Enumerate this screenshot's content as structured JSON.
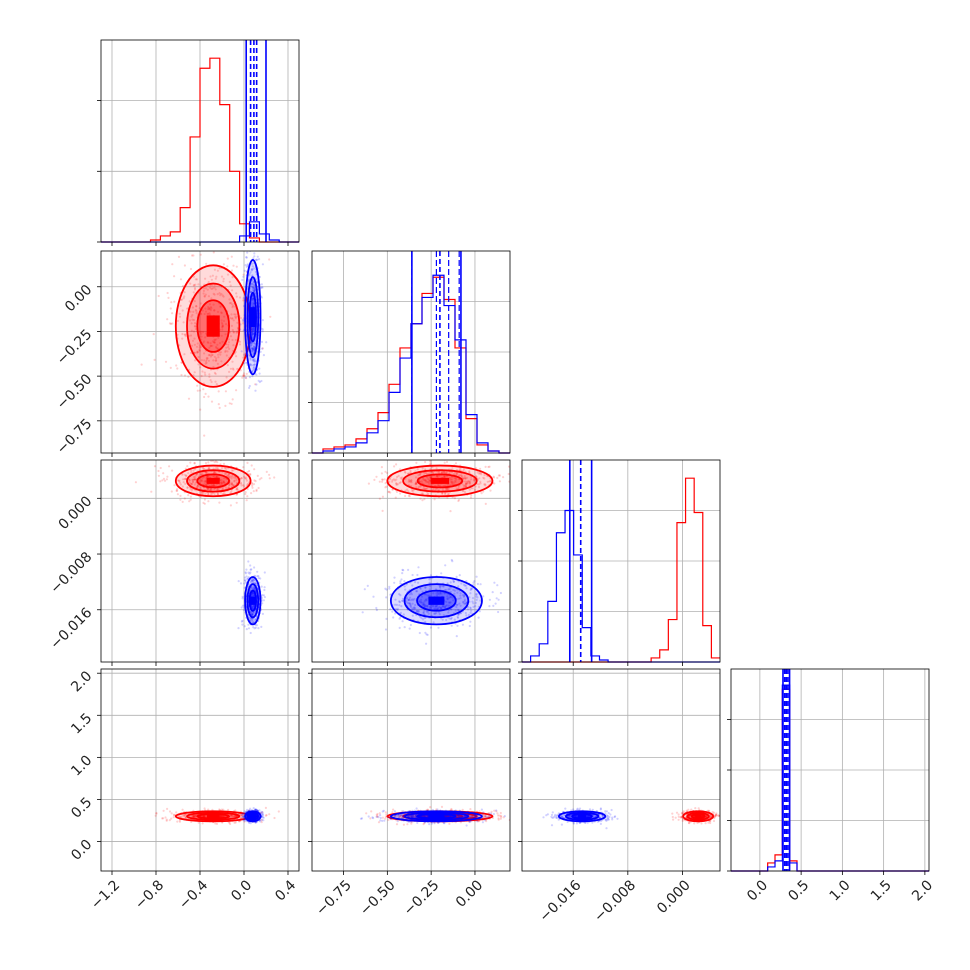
{
  "chart_data": {
    "type": "corner",
    "series": [
      {
        "name": "",
        "color": "#ff0000"
      },
      {
        "name": "",
        "color": "#0000ff"
      }
    ],
    "columns": [
      {
        "range": [
          -1.3,
          0.5
        ],
        "ticks": [
          "−1.2",
          "−0.8",
          "−0.4",
          "0.0",
          "0.4"
        ],
        "tick_values": [
          -1.2,
          -0.8,
          -0.4,
          0.0,
          0.4
        ]
      },
      {
        "range": [
          -0.93,
          0.2
        ],
        "ticks": [
          "−0.75",
          "−0.50",
          "−0.25",
          "0.00"
        ],
        "tick_values": [
          -0.75,
          -0.5,
          -0.25,
          0.0
        ]
      },
      {
        "range": [
          -0.0235,
          0.0055
        ],
        "ticks": [
          "−0.016",
          "−0.008",
          "0.000"
        ],
        "tick_values": [
          -0.016,
          -0.008,
          0.0
        ]
      },
      {
        "range": [
          -0.35,
          2.05
        ],
        "ticks": [
          "0.0",
          "0.5",
          "1.0",
          "1.5",
          "2.0"
        ],
        "tick_values": [
          0.0,
          0.5,
          1.0,
          1.5,
          2.0
        ]
      }
    ],
    "rows": [
      {
        "index": 1,
        "range": [
          -0.93,
          0.2
        ],
        "ticks": [
          "0.00",
          "−0.25",
          "−0.50",
          "−0.75"
        ],
        "tick_values": [
          0.0,
          -0.25,
          -0.5,
          -0.75
        ]
      },
      {
        "index": 2,
        "range": [
          -0.0235,
          0.0055
        ],
        "ticks": [
          "0.000",
          "−0.008",
          "−0.016"
        ],
        "tick_values": [
          0.0,
          -0.008,
          -0.016
        ]
      },
      {
        "index": 3,
        "range": [
          -0.35,
          2.05
        ],
        "ticks": [
          "2.0",
          "1.5",
          "1.0",
          "0.5",
          "0.0"
        ],
        "tick_values": [
          2.0,
          1.5,
          1.0,
          0.5,
          0.0
        ]
      }
    ],
    "diagonal": [
      {
        "hist_range": [
          -1.3,
          0.5
        ],
        "ymax": 1.0,
        "y_ticks": [
          0.0,
          0.35,
          0.7
        ],
        "red": [
          0,
          0,
          0,
          0,
          0,
          0.01,
          0.03,
          0.05,
          0.17,
          0.52,
          0.86,
          0.91,
          0.68,
          0.35,
          0.09,
          0.02,
          0,
          0,
          0,
          0
        ],
        "blue": [
          0,
          0,
          0,
          0,
          0,
          0,
          0,
          0,
          0,
          0,
          0,
          0,
          0,
          0,
          0.03,
          0.1,
          0.04,
          0.01,
          0,
          0
        ],
        "blue_lines": [
          0.02,
          0.06,
          0.09,
          0.115,
          0.2
        ],
        "red_lines": []
      },
      {
        "hist_range": [
          -0.93,
          0.2
        ],
        "ymax": 1.0,
        "y_ticks": [
          0.0,
          0.25,
          0.5,
          0.75
        ],
        "red": [
          0,
          0.02,
          0.03,
          0.04,
          0.07,
          0.12,
          0.2,
          0.34,
          0.52,
          0.64,
          0.79,
          0.87,
          0.76,
          0.52,
          0.17,
          0.04,
          0.01,
          0
        ],
        "blue": [
          0,
          0.01,
          0.02,
          0.03,
          0.05,
          0.1,
          0.16,
          0.3,
          0.47,
          0.64,
          0.77,
          0.88,
          0.73,
          0.56,
          0.19,
          0.05,
          0.01,
          0
        ],
        "blue_lines": [
          -0.36,
          -0.2,
          -0.08
        ],
        "red_lines": [
          -0.36,
          -0.22,
          -0.15,
          -0.09
        ]
      },
      {
        "hist_range": [
          -0.0235,
          0.0055
        ],
        "ymax": 1.0,
        "y_ticks": [
          0.0,
          0.25,
          0.5,
          0.75
        ],
        "red": [
          0,
          0,
          0,
          0,
          0,
          0,
          0,
          0,
          0,
          0,
          0,
          0,
          0,
          0,
          0,
          0.02,
          0.06,
          0.21,
          0.69,
          0.91,
          0.74,
          0.18,
          0.02
        ],
        "blue": [
          0,
          0.03,
          0.09,
          0.3,
          0.64,
          0.75,
          0.53,
          0.17,
          0.03,
          0.01,
          0,
          0,
          0,
          0,
          0,
          0,
          0,
          0,
          0,
          0,
          0,
          0,
          0
        ],
        "blue_lines": [
          -0.0165,
          -0.0149,
          -0.0133
        ],
        "red_lines": []
      },
      {
        "hist_range": [
          -0.35,
          2.05
        ],
        "ymax": 1.0,
        "y_ticks": [
          0.0,
          0.25,
          0.5,
          0.75
        ],
        "red": [
          0,
          0,
          0,
          0,
          0,
          0.04,
          0.08,
          0.9,
          0.05,
          0,
          0,
          0,
          0,
          0,
          0,
          0,
          0,
          0,
          0,
          0,
          0,
          0,
          0,
          0,
          0,
          0,
          0
        ],
        "blue": [
          0,
          0,
          0,
          0,
          0,
          0.02,
          0.05,
          0.92,
          0.04,
          0,
          0,
          0,
          0,
          0,
          0,
          0,
          0,
          0,
          0,
          0,
          0,
          0,
          0,
          0,
          0,
          0,
          0
        ],
        "blue_lines": [
          0.28,
          0.3,
          0.32,
          0.34,
          0.36
        ],
        "red_lines": []
      }
    ],
    "scatter_panels": [
      {
        "row": 1,
        "col": 0,
        "red": {
          "cx": -0.28,
          "cy": -0.22,
          "sx": 0.17,
          "sy": 0.17
        },
        "blue": {
          "cx": 0.08,
          "cy": -0.17,
          "sx": 0.035,
          "sy": 0.16
        }
      },
      {
        "row": 2,
        "col": 0,
        "red": {
          "cx": -0.28,
          "cy": 0.0025,
          "sx": 0.17,
          "sy": 0.0011
        },
        "blue": {
          "cx": 0.08,
          "cy": -0.0147,
          "sx": 0.035,
          "sy": 0.0017
        }
      },
      {
        "row": 2,
        "col": 1,
        "red": {
          "cx": -0.2,
          "cy": 0.0025,
          "sx": 0.15,
          "sy": 0.0011
        },
        "blue": {
          "cx": -0.22,
          "cy": -0.0147,
          "sx": 0.13,
          "sy": 0.0017
        }
      },
      {
        "row": 3,
        "col": 0,
        "red": {
          "cx": -0.28,
          "cy": 0.3,
          "sx": 0.17,
          "sy": 0.03
        },
        "blue": {
          "cx": 0.08,
          "cy": 0.3,
          "sx": 0.035,
          "sy": 0.03
        }
      },
      {
        "row": 3,
        "col": 1,
        "red": {
          "cx": -0.2,
          "cy": 0.3,
          "sx": 0.15,
          "sy": 0.03
        },
        "blue": {
          "cx": -0.22,
          "cy": 0.3,
          "sx": 0.13,
          "sy": 0.03
        }
      },
      {
        "row": 3,
        "col": 2,
        "red": {
          "cx": 0.0023,
          "cy": 0.3,
          "sx": 0.0011,
          "sy": 0.03
        },
        "blue": {
          "cx": -0.0147,
          "cy": 0.3,
          "sx": 0.0017,
          "sy": 0.03
        }
      }
    ]
  }
}
